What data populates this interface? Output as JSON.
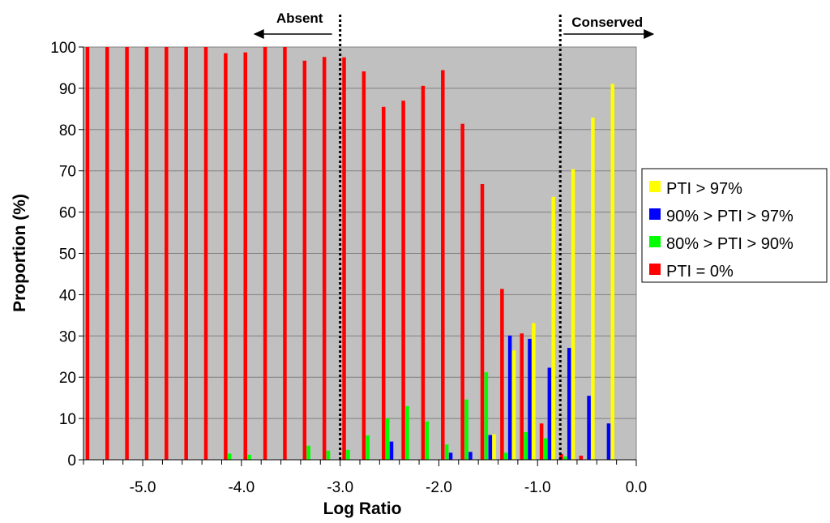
{
  "chart_data": {
    "type": "bar",
    "title": "",
    "xlabel": "Log Ratio",
    "ylabel": "Proportion (%)",
    "ylim": [
      0,
      100
    ],
    "xlim": [
      -5.6,
      0.0
    ],
    "yticks": [
      "0",
      "10",
      "20",
      "30",
      "40",
      "50",
      "60",
      "70",
      "80",
      "90",
      "100"
    ],
    "xticks": [
      {
        "value": -5.0,
        "label": "-5.0"
      },
      {
        "value": -4.0,
        "label": "-4.0"
      },
      {
        "value": -3.0,
        "label": "-3.0"
      },
      {
        "value": -2.0,
        "label": "-2.0"
      },
      {
        "value": -1.0,
        "label": "-1.0"
      },
      {
        "value": 0.0,
        "label": "0.0"
      }
    ],
    "grid": true,
    "legend_position": "right",
    "x": [
      -5.5,
      -5.3,
      -5.1,
      -4.9,
      -4.7,
      -4.5,
      -4.3,
      -4.1,
      -3.9,
      -3.7,
      -3.5,
      -3.3,
      -3.1,
      -2.9,
      -2.7,
      -2.5,
      -2.3,
      -2.1,
      -1.9,
      -1.7,
      -1.5,
      -1.3,
      -1.1,
      -0.9,
      -0.7,
      -0.5,
      -0.3,
      -0.1
    ],
    "series": [
      {
        "name": "PTI = 0%",
        "color": "#ff0000",
        "values": [
          100,
          100,
          100,
          100,
          100,
          100,
          100,
          98.5,
          98.7,
          100,
          100,
          96.7,
          97.6,
          97.5,
          94.1,
          85.5,
          87,
          90.6,
          94.4,
          81.4,
          66.8,
          41.4,
          30.6,
          8.8,
          1.4,
          1.0,
          0,
          0
        ]
      },
      {
        "name": "80% > PTI > 90%",
        "color": "#00ff00",
        "values": [
          0,
          0,
          0,
          0,
          0,
          0,
          0,
          1.5,
          1.2,
          0,
          0,
          3.4,
          2.2,
          2.4,
          5.9,
          10,
          13,
          9.3,
          3.7,
          14.6,
          21.2,
          1.7,
          6.7,
          5.2,
          0.8,
          0,
          0,
          0
        ]
      },
      {
        "name": "90% > PTI > 97%",
        "color": "#0000ff",
        "values": [
          0,
          0,
          0,
          0,
          0,
          0,
          0,
          0,
          0,
          0,
          0,
          0,
          0,
          0,
          0,
          4.4,
          0,
          0,
          1.7,
          1.9,
          6.0,
          30.1,
          29.3,
          22.3,
          27.1,
          15.5,
          8.8,
          0
        ]
      },
      {
        "name": "PTI > 97%",
        "color": "#ffff00",
        "values": [
          0,
          0,
          0,
          0,
          0,
          0,
          0,
          0,
          0,
          0,
          0,
          0,
          0,
          0,
          0,
          0,
          0,
          0,
          0,
          0,
          6.2,
          26.5,
          33.1,
          63.7,
          70.4,
          82.9,
          91.1,
          0
        ]
      }
    ],
    "legend_order": [
      "PTI > 97%",
      "90% > PTI > 97%",
      "80% > PTI > 90%",
      "PTI = 0%"
    ],
    "annotations": [
      {
        "text": "Absent",
        "x": -3.0,
        "direction": "left"
      },
      {
        "text": "Conserved",
        "x": -0.77,
        "direction": "right"
      }
    ],
    "plot_background": "#c0c0c0"
  }
}
